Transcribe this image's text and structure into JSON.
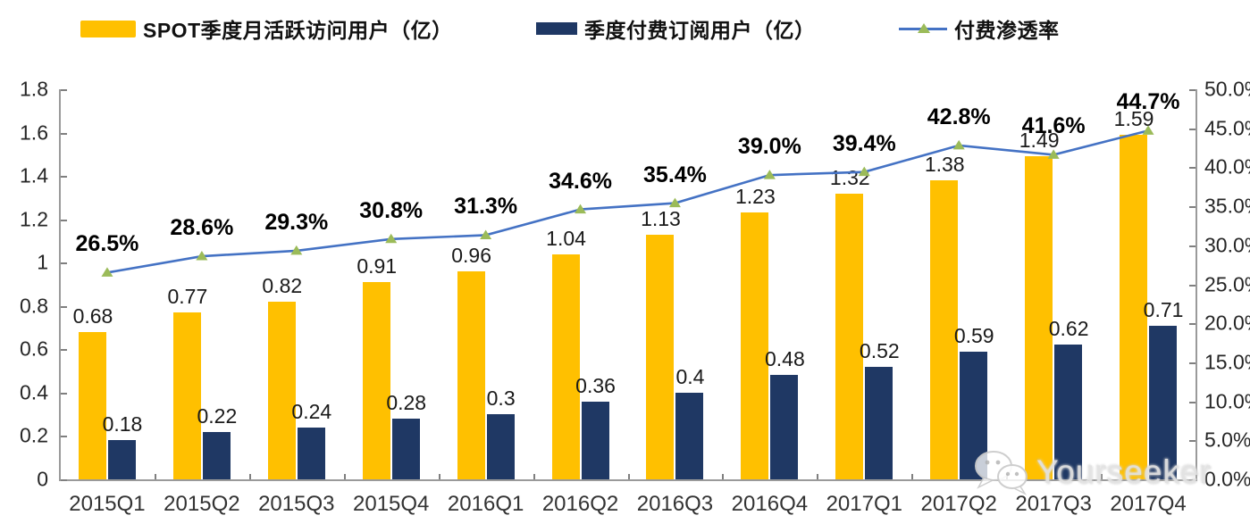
{
  "legend": [
    {
      "label": "SPOT季度月活跃访问用户（亿）",
      "color": "#FFC000",
      "type": "bar"
    },
    {
      "label": "季度付费订阅用户（亿）",
      "color": "#1F3864",
      "type": "bar"
    },
    {
      "label": "付费渗透率",
      "color": "#4472C4",
      "marker_color": "#9BBB59",
      "type": "line"
    }
  ],
  "watermark": {
    "text": "Yourseeker",
    "icon": "wechat-icon"
  },
  "colors": {
    "mau_bar": "#FFC000",
    "subscriber_bar": "#1F3864",
    "penetration_line": "#4472C4",
    "marker_green": "#9BBB59",
    "axis_gray": "#9a9a9a"
  },
  "chart_data": {
    "type": "bar",
    "subtype": "grouped-bars-with-line-combo",
    "grid": false,
    "legend_position": "top",
    "categories": [
      "2015Q1",
      "2015Q2",
      "2015Q3",
      "2015Q4",
      "2016Q1",
      "2016Q2",
      "2016Q3",
      "2016Q4",
      "2017Q1",
      "2017Q2",
      "2017Q3",
      "2017Q4"
    ],
    "series": [
      {
        "name": "SPOT季度月活跃访问用户（亿）",
        "type": "bar",
        "axis": "left",
        "color": "#FFC000",
        "values": [
          0.68,
          0.77,
          0.82,
          0.91,
          0.96,
          1.04,
          1.13,
          1.23,
          1.32,
          1.38,
          1.49,
          1.59
        ],
        "labels": [
          "0.68",
          "0.77",
          "0.82",
          "0.91",
          "0.96",
          "1.04",
          "1.13",
          "1.23",
          "1.32",
          "1.38",
          "1.49",
          "1.59"
        ]
      },
      {
        "name": "季度付费订阅用户（亿）",
        "type": "bar",
        "axis": "left",
        "color": "#1F3864",
        "values": [
          0.18,
          0.22,
          0.24,
          0.28,
          0.3,
          0.36,
          0.4,
          0.48,
          0.52,
          0.59,
          0.62,
          0.71
        ],
        "labels": [
          "0.18",
          "0.22",
          "0.24",
          "0.28",
          "0.3",
          "0.36",
          "0.4",
          "0.48",
          "0.52",
          "0.59",
          "0.62",
          "0.71"
        ]
      },
      {
        "name": "付费渗透率",
        "type": "line",
        "axis": "right",
        "color": "#4472C4",
        "marker": "triangle",
        "marker_color": "#9BBB59",
        "values": [
          26.5,
          28.6,
          29.3,
          30.8,
          31.3,
          34.6,
          35.4,
          39.0,
          39.4,
          42.8,
          41.6,
          44.7
        ],
        "labels": [
          "26.5%",
          "28.6%",
          "29.3%",
          "30.8%",
          "31.3%",
          "34.6%",
          "35.4%",
          "39.0%",
          "39.4%",
          "42.8%",
          "41.6%",
          "44.7%"
        ]
      }
    ],
    "left_axis": {
      "min": 0,
      "max": 1.8,
      "step": 0.2,
      "ticks": [
        "1.8",
        "1.6",
        "1.4",
        "1.2",
        "1",
        "0.8",
        "0.6",
        "0.4",
        "0.2",
        "0"
      ]
    },
    "right_axis": {
      "min": 0,
      "max": 50,
      "step": 5,
      "unit": "%",
      "ticks": [
        "50.0%",
        "45.0%",
        "40.0%",
        "35.0%",
        "30.0%",
        "25.0%",
        "20.0%",
        "15.0%",
        "10.0%",
        "5.0%",
        "0.0%"
      ]
    }
  }
}
